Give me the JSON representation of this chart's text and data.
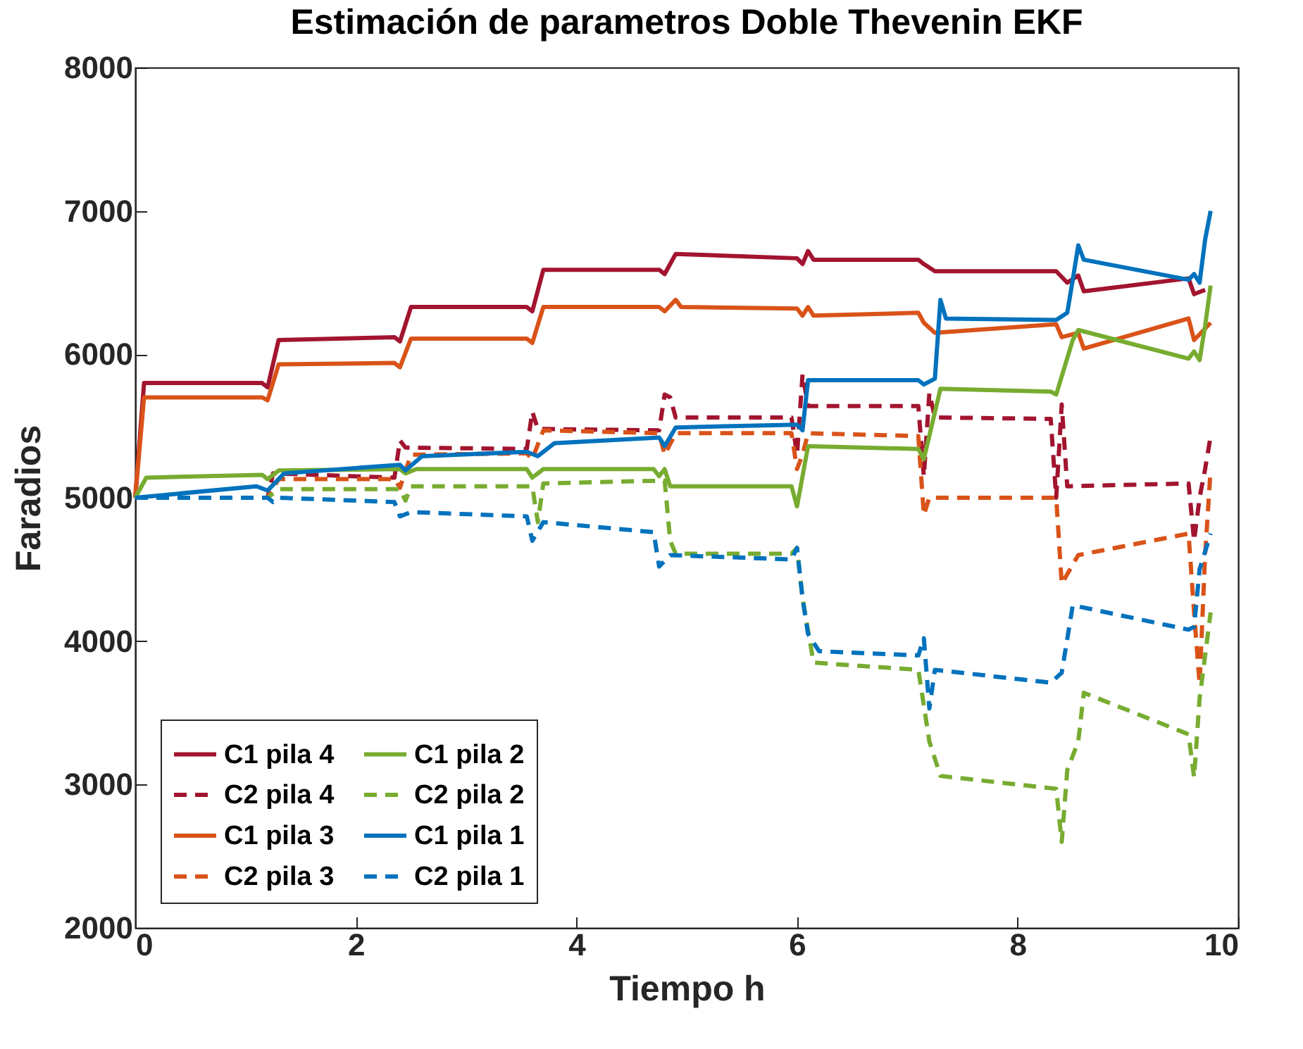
{
  "chart_data": {
    "type": "line",
    "title": "Estimación de parametros Doble Thevenin EKF",
    "xlabel": "Tiempo h",
    "ylabel": "Faradios",
    "xlim": [
      0,
      10
    ],
    "xticks": [
      0,
      2,
      4,
      6,
      8,
      10
    ],
    "ylim": [
      2000,
      8000
    ],
    "yticks": [
      2000,
      3000,
      4000,
      5000,
      6000,
      7000,
      8000
    ],
    "grid": false,
    "legend": "bottom left",
    "marker": "none",
    "series": [
      {
        "name": "C1 pila 4",
        "color": "#a2142f",
        "line_style": "solid",
        "x": [
          0,
          0.08,
          1.15,
          1.2,
          1.3,
          2.35,
          2.4,
          2.5,
          3.55,
          3.6,
          3.7,
          4.75,
          4.8,
          4.9,
          6.0,
          6.05,
          6.1,
          6.15,
          7.1,
          7.15,
          7.25,
          8.35,
          8.45,
          8.55,
          8.6,
          9.55,
          9.6,
          9.7
        ],
        "values": [
          5000,
          5800,
          5800,
          5770,
          6100,
          6120,
          6090,
          6330,
          6330,
          6300,
          6590,
          6590,
          6560,
          6700,
          6670,
          6630,
          6720,
          6660,
          6660,
          6630,
          6580,
          6580,
          6500,
          6550,
          6440,
          6530,
          6420,
          6450
        ]
      },
      {
        "name": "C2 pila 4",
        "color": "#a2142f",
        "line_style": "dashed",
        "x": [
          0,
          1.2,
          1.25,
          2.35,
          2.4,
          2.45,
          3.55,
          3.6,
          3.65,
          4.75,
          4.8,
          4.85,
          4.9,
          5.95,
          6.0,
          6.05,
          6.1,
          7.1,
          7.15,
          7.2,
          7.25,
          8.3,
          8.35,
          8.4,
          8.45,
          9.55,
          9.6,
          9.65,
          9.7,
          9.75
        ],
        "values": [
          5000,
          5000,
          5170,
          5140,
          5400,
          5350,
          5340,
          5600,
          5480,
          5470,
          5720,
          5700,
          5560,
          5560,
          5300,
          5860,
          5640,
          5640,
          5150,
          5730,
          5560,
          5550,
          5000,
          5650,
          5080,
          5100,
          4700,
          5000,
          5200,
          5430
        ]
      },
      {
        "name": "C1 pila 3",
        "color": "#d95319",
        "line_style": "solid",
        "x": [
          0,
          0.08,
          1.15,
          1.2,
          1.3,
          2.35,
          2.4,
          2.5,
          3.55,
          3.6,
          3.7,
          4.75,
          4.8,
          4.9,
          4.95,
          6.0,
          6.05,
          6.1,
          6.15,
          7.1,
          7.15,
          7.25,
          8.35,
          8.4,
          8.55,
          8.6,
          9.55,
          9.6,
          9.75
        ],
        "values": [
          5000,
          5700,
          5700,
          5680,
          5930,
          5940,
          5910,
          6110,
          6110,
          6080,
          6330,
          6330,
          6300,
          6380,
          6330,
          6320,
          6270,
          6330,
          6270,
          6290,
          6220,
          6150,
          6210,
          6120,
          6150,
          6040,
          6250,
          6100,
          6220
        ]
      },
      {
        "name": "C2 pila 3",
        "color": "#d95319",
        "line_style": "dashed",
        "x": [
          0,
          1.2,
          1.3,
          2.35,
          2.4,
          2.5,
          3.55,
          3.6,
          3.7,
          4.75,
          4.8,
          4.9,
          5.95,
          6.0,
          6.05,
          6.1,
          7.1,
          7.15,
          7.2,
          8.35,
          8.4,
          8.55,
          9.55,
          9.6,
          9.65,
          9.7,
          9.75
        ],
        "values": [
          5000,
          5000,
          5130,
          5130,
          5070,
          5300,
          5310,
          5270,
          5470,
          5450,
          5300,
          5450,
          5450,
          5200,
          5300,
          5450,
          5430,
          4880,
          5000,
          5000,
          4400,
          4600,
          4750,
          4200,
          3700,
          4600,
          5200
        ]
      },
      {
        "name": "C1 pila 2",
        "color": "#77ac30",
        "line_style": "solid",
        "x": [
          0,
          0.1,
          1.15,
          1.2,
          1.3,
          2.4,
          2.45,
          2.55,
          3.55,
          3.6,
          3.7,
          4.7,
          4.75,
          4.8,
          4.85,
          5.95,
          6.0,
          6.1,
          7.1,
          7.15,
          7.3,
          8.3,
          8.35,
          8.5,
          8.55,
          8.6,
          9.55,
          9.6,
          9.65,
          9.7,
          9.75
        ],
        "values": [
          5000,
          5140,
          5160,
          5130,
          5190,
          5200,
          5170,
          5200,
          5200,
          5140,
          5200,
          5200,
          5150,
          5200,
          5080,
          5080,
          4940,
          5360,
          5340,
          5270,
          5760,
          5740,
          5720,
          6100,
          6170,
          6160,
          5970,
          6020,
          5960,
          6200,
          6480
        ]
      },
      {
        "name": "C2 pila 2",
        "color": "#77ac30",
        "line_style": "dashed",
        "x": [
          0,
          1.2,
          1.3,
          2.4,
          2.45,
          2.5,
          3.6,
          3.65,
          3.7,
          4.8,
          4.85,
          4.9,
          5.95,
          6.0,
          6.05,
          6.15,
          7.1,
          7.2,
          7.3,
          8.35,
          8.4,
          8.45,
          8.55,
          8.6,
          9.55,
          9.6,
          9.65,
          9.75
        ],
        "values": [
          5000,
          5000,
          5060,
          5060,
          4980,
          5080,
          5080,
          4830,
          5100,
          5120,
          4700,
          4610,
          4610,
          4650,
          4300,
          3850,
          3800,
          3300,
          3060,
          2970,
          2600,
          3100,
          3300,
          3640,
          3350,
          3050,
          3600,
          4200
        ]
      },
      {
        "name": "C1 pila 1",
        "color": "#0072bd",
        "line_style": "solid",
        "x": [
          0,
          1.1,
          1.2,
          1.35,
          2.4,
          2.45,
          2.6,
          3.55,
          3.65,
          3.8,
          4.75,
          4.8,
          4.9,
          6.0,
          6.05,
          6.1,
          7.1,
          7.15,
          7.25,
          7.3,
          7.35,
          8.35,
          8.45,
          8.5,
          8.55,
          8.6,
          9.55,
          9.6,
          9.65,
          9.7,
          9.75
        ],
        "values": [
          5000,
          5080,
          5050,
          5170,
          5230,
          5190,
          5290,
          5320,
          5290,
          5380,
          5420,
          5360,
          5490,
          5510,
          5470,
          5820,
          5820,
          5790,
          5830,
          6380,
          6250,
          6240,
          6290,
          6520,
          6760,
          6660,
          6520,
          6560,
          6500,
          6800,
          7000
        ]
      },
      {
        "name": "C2 pila 1",
        "color": "#0072bd",
        "line_style": "dashed",
        "x": [
          0,
          1.2,
          1.25,
          1.3,
          2.35,
          2.4,
          2.5,
          3.55,
          3.6,
          3.7,
          4.7,
          4.75,
          4.85,
          5.95,
          6.0,
          6.05,
          6.1,
          6.2,
          7.1,
          7.15,
          7.2,
          7.25,
          8.3,
          8.4,
          8.5,
          9.55,
          9.6,
          9.65,
          9.75
        ],
        "values": [
          5000,
          5000,
          4970,
          5000,
          4970,
          4870,
          4900,
          4870,
          4700,
          4830,
          4760,
          4520,
          4600,
          4570,
          4650,
          4300,
          4050,
          3930,
          3900,
          4020,
          3530,
          3800,
          3710,
          3780,
          4250,
          4080,
          4100,
          4500,
          4750
        ]
      }
    ]
  }
}
